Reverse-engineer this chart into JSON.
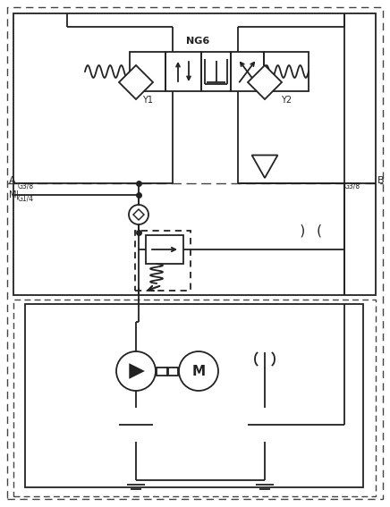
{
  "bg_color": "#ffffff",
  "lc": "#222222",
  "lw": 1.3,
  "fig_w": 4.36,
  "fig_h": 5.67,
  "dpi": 100,
  "outer_dash": [
    6,
    4
  ],
  "inner_dash": [
    5,
    3
  ]
}
